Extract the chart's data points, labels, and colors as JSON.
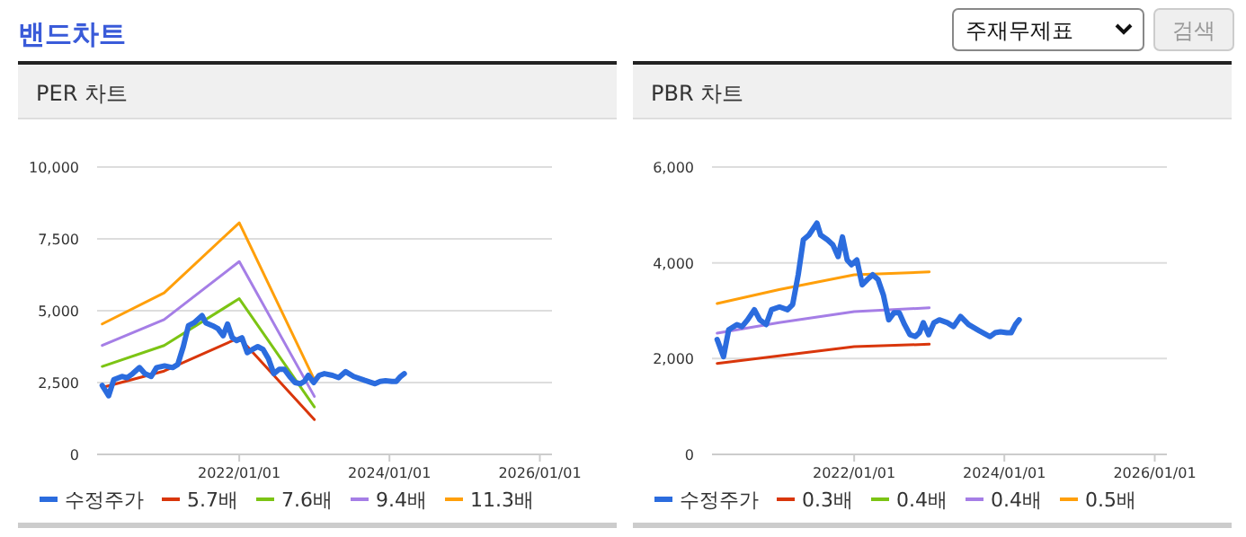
{
  "chart_data": [
    {
      "type": "other",
      "title": "밴드차트",
      "annotations": [
        "주재무제표",
        "검색"
      ]
    },
    {
      "type": "line",
      "title": "PER 차트",
      "xlim": [
        "2020-02-10",
        "2026-03-01"
      ],
      "xticks": [
        {
          "value": "2022-01-01",
          "label": "2022/01/01"
        },
        {
          "value": "2024-01-01",
          "label": "2024/01/01"
        },
        {
          "value": "2026-01-01",
          "label": "2026/01/01"
        }
      ],
      "ylim": [
        0,
        10000
      ],
      "yticks": [
        0,
        {
          "value": 2500,
          "label": "2,500"
        },
        {
          "value": 5000,
          "label": "5,000"
        },
        {
          "value": 7500,
          "label": "7,500"
        },
        {
          "value": 10000,
          "label": "10,000"
        }
      ],
      "grid": "y",
      "legend": "bottom",
      "line_style": "solid",
      "series": [
        {
          "name": "수정주가",
          "color": "#2b6cde",
          "x": [
            "2020-03-06",
            "2020-04-06",
            "2020-05-01",
            "2020-06-10",
            "2020-07-05",
            "2020-08-01",
            "2020-09-03",
            "2020-09-29",
            "2020-10-30",
            "2020-11-25",
            "2021-01-03",
            "2021-02-11",
            "2021-03-08",
            "2021-04-04",
            "2021-04-29",
            "2021-05-26",
            "2021-07-04",
            "2021-07-22",
            "2021-08-24",
            "2021-09-19",
            "2021-10-15",
            "2021-11-05",
            "2021-11-28",
            "2021-12-19",
            "2022-01-14",
            "2022-02-09",
            "2022-03-06",
            "2022-04-01",
            "2022-04-27",
            "2022-05-23",
            "2022-06-18",
            "2022-07-14",
            "2022-08-08",
            "2022-09-03",
            "2022-09-29",
            "2022-10-25",
            "2022-11-14",
            "2022-12-03",
            "2022-12-29",
            "2023-01-24",
            "2023-02-19",
            "2023-03-30",
            "2023-04-29",
            "2023-06-02",
            "2023-07-11",
            "2023-09-01",
            "2023-10-23",
            "2023-11-17",
            "2023-12-13",
            "2024-01-13",
            "2024-02-03",
            "2024-02-24",
            "2024-03-13"
          ],
          "values": [
            2400,
            2040,
            2600,
            2710,
            2670,
            2810,
            3020,
            2810,
            2710,
            3020,
            3080,
            3020,
            3130,
            3750,
            4480,
            4580,
            4830,
            4580,
            4480,
            4380,
            4130,
            4540,
            4060,
            3960,
            4060,
            3540,
            3650,
            3750,
            3650,
            3330,
            2810,
            2960,
            2960,
            2710,
            2500,
            2460,
            2540,
            2750,
            2500,
            2750,
            2810,
            2750,
            2670,
            2880,
            2710,
            2580,
            2460,
            2540,
            2560,
            2540,
            2540,
            2710,
            2810
          ]
        },
        {
          "name": "5.7배",
          "color": "#d9360b",
          "x": [
            "2020-03-06",
            "2021-01-01",
            "2022-01-01",
            "2023-01-01"
          ],
          "values": [
            2330,
            2900,
            4060,
            1210
          ]
        },
        {
          "name": "7.6배",
          "color": "#7cc414",
          "x": [
            "2020-03-06",
            "2021-01-01",
            "2022-01-01",
            "2023-01-01"
          ],
          "values": [
            3060,
            3790,
            5420,
            1650
          ]
        },
        {
          "name": "9.4배",
          "color": "#a57ee6",
          "x": [
            "2020-03-06",
            "2021-01-01",
            "2022-01-01",
            "2023-01-01"
          ],
          "values": [
            3790,
            4690,
            6710,
            2020
          ]
        },
        {
          "name": "11.3배",
          "color": "#ff9f0a",
          "x": [
            "2020-03-06",
            "2021-01-01",
            "2022-01-01",
            "2023-01-01"
          ],
          "values": [
            4540,
            5620,
            8060,
            2600
          ]
        }
      ]
    },
    {
      "type": "line",
      "title": "PBR 차트",
      "xlim": [
        "2020-02-10",
        "2026-03-01"
      ],
      "xticks": [
        {
          "value": "2022-01-01",
          "label": "2022/01/01"
        },
        {
          "value": "2024-01-01",
          "label": "2024/01/01"
        },
        {
          "value": "2026-01-01",
          "label": "2026/01/01"
        }
      ],
      "ylim": [
        0,
        6000
      ],
      "yticks": [
        0,
        {
          "value": 2000,
          "label": "2,000"
        },
        {
          "value": 4000,
          "label": "4,000"
        },
        {
          "value": 6000,
          "label": "6,000"
        }
      ],
      "grid": "y",
      "legend": "bottom",
      "line_style": "solid",
      "series": [
        {
          "name": "수정주가",
          "color": "#2b6cde",
          "x": [
            "2020-03-06",
            "2020-04-06",
            "2020-05-01",
            "2020-06-10",
            "2020-07-05",
            "2020-08-01",
            "2020-09-03",
            "2020-09-29",
            "2020-10-30",
            "2020-11-25",
            "2021-01-03",
            "2021-02-11",
            "2021-03-08",
            "2021-04-04",
            "2021-04-29",
            "2021-05-26",
            "2021-07-04",
            "2021-07-22",
            "2021-08-24",
            "2021-09-19",
            "2021-10-15",
            "2021-11-05",
            "2021-11-28",
            "2021-12-19",
            "2022-01-14",
            "2022-02-09",
            "2022-03-06",
            "2022-04-01",
            "2022-04-27",
            "2022-05-23",
            "2022-06-18",
            "2022-07-14",
            "2022-08-08",
            "2022-09-03",
            "2022-09-29",
            "2022-10-25",
            "2022-11-14",
            "2022-12-03",
            "2022-12-29",
            "2023-01-24",
            "2023-02-19",
            "2023-03-30",
            "2023-04-29",
            "2023-06-02",
            "2023-07-11",
            "2023-09-01",
            "2023-10-23",
            "2023-11-17",
            "2023-12-13",
            "2024-01-13",
            "2024-02-03",
            "2024-02-24",
            "2024-03-13"
          ],
          "values": [
            2400,
            2040,
            2600,
            2710,
            2670,
            2810,
            3020,
            2810,
            2710,
            3020,
            3080,
            3020,
            3130,
            3750,
            4480,
            4580,
            4830,
            4580,
            4480,
            4380,
            4130,
            4540,
            4060,
            3960,
            4060,
            3540,
            3650,
            3750,
            3650,
            3330,
            2810,
            2960,
            2960,
            2710,
            2500,
            2460,
            2540,
            2750,
            2500,
            2750,
            2810,
            2750,
            2670,
            2880,
            2710,
            2580,
            2460,
            2540,
            2560,
            2540,
            2540,
            2710,
            2810
          ]
        },
        {
          "name": "0.3배",
          "color": "#d9360b",
          "x": [
            "2020-03-06",
            "2021-01-01",
            "2022-01-01",
            "2023-01-01"
          ],
          "values": [
            1900,
            2060,
            2250,
            2300
          ]
        },
        {
          "name": "0.4배",
          "color": "#7cc414",
          "values": [
            null,
            null,
            null,
            null
          ]
        },
        {
          "name": "0.4배",
          "color": "#a57ee6",
          "x": [
            "2020-03-06",
            "2021-01-01",
            "2022-01-01",
            "2023-01-01"
          ],
          "values": [
            2530,
            2750,
            2980,
            3060
          ]
        },
        {
          "name": "0.5배",
          "color": "#ff9f0a",
          "x": [
            "2020-03-06",
            "2021-01-01",
            "2022-01-01",
            "2023-01-01"
          ],
          "values": [
            3150,
            3440,
            3750,
            3810
          ]
        }
      ]
    }
  ]
}
